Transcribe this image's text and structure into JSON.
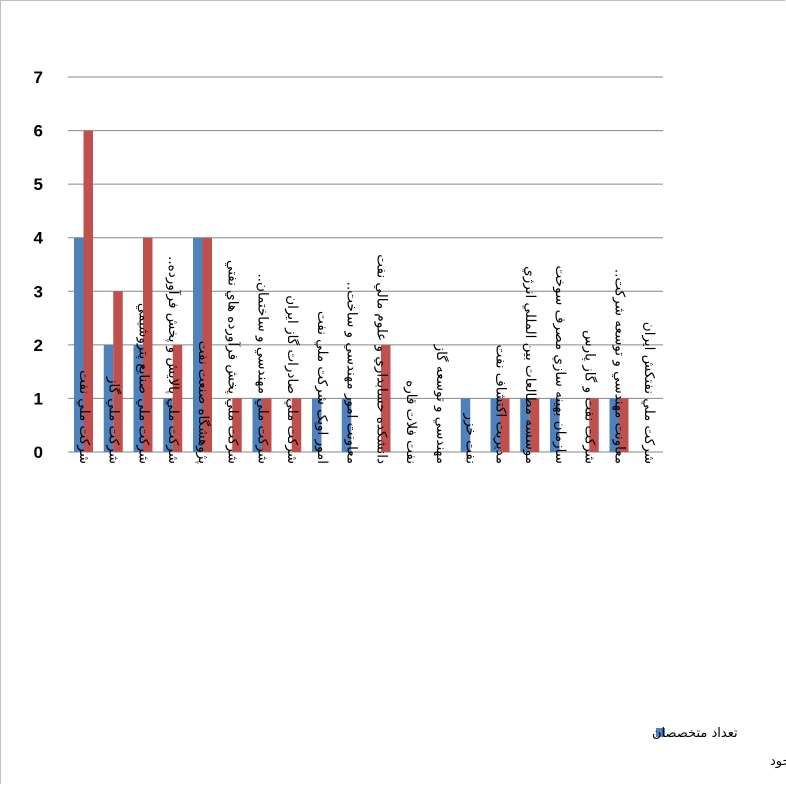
{
  "chart_data": {
    "type": "bar",
    "title": "",
    "xlabel": "",
    "ylabel": "",
    "ylim": [
      0,
      7
    ],
    "yticks": [
      "0",
      "1",
      "2",
      "3",
      "4",
      "5",
      "6",
      "7"
    ],
    "grid": true,
    "legend_position": "bottom-right",
    "categories": [
      "شرکت ملي نفت",
      "شرکت ملي گاز",
      "شرکت ملي صنايع پتروشيمي",
      "شرکت ملي پالايش و پخش فرآورده..",
      "پژوهشگاه صنعت نفت",
      "شرکت ملي پخش فرآورده هاي نفتي",
      "شرکت ملي مهندسي و ساختمان..",
      "شرکت ملي صادرات گاز ايران",
      "امور اوپک شرکت ملي نفت",
      "معاونت امور مهندسي و ساخت..",
      "دانشکده حسابداري و علوم مالي نفت",
      "نفت فلات قاره",
      "مهندسي و توسعه گاز",
      "نفت خزر",
      "مديريت اکتشاف نفت",
      "موسسه مطالعات بين المللي انرژي",
      "سازمان بهينه سازي مصرف سوخت",
      "شرکت نفت و گاز پارس",
      "معاونت مهندسي و توسعه شرکت..",
      "شرکت ملي نفتکش ايران"
    ],
    "series": [
      {
        "name": "تعداد متخصصان",
        "color": "#4f81bd",
        "values": [
          4,
          2,
          2,
          1,
          4,
          0,
          1,
          0,
          1,
          1,
          0,
          0,
          0,
          1,
          1,
          1,
          1,
          0,
          1,
          0
        ]
      },
      {
        "name": "موجود",
        "color": "#c0504d",
        "values": [
          6,
          3,
          4,
          2,
          4,
          1,
          1,
          1,
          0,
          0,
          2,
          0,
          0,
          0,
          1,
          1,
          0,
          1,
          1,
          0
        ]
      }
    ]
  },
  "legend": {
    "line1": "تعداد متخصصان",
    "line2": "موجود"
  },
  "colors": {
    "grid": "#868686",
    "axis": "#868686",
    "frame": "#bfbfbf"
  }
}
